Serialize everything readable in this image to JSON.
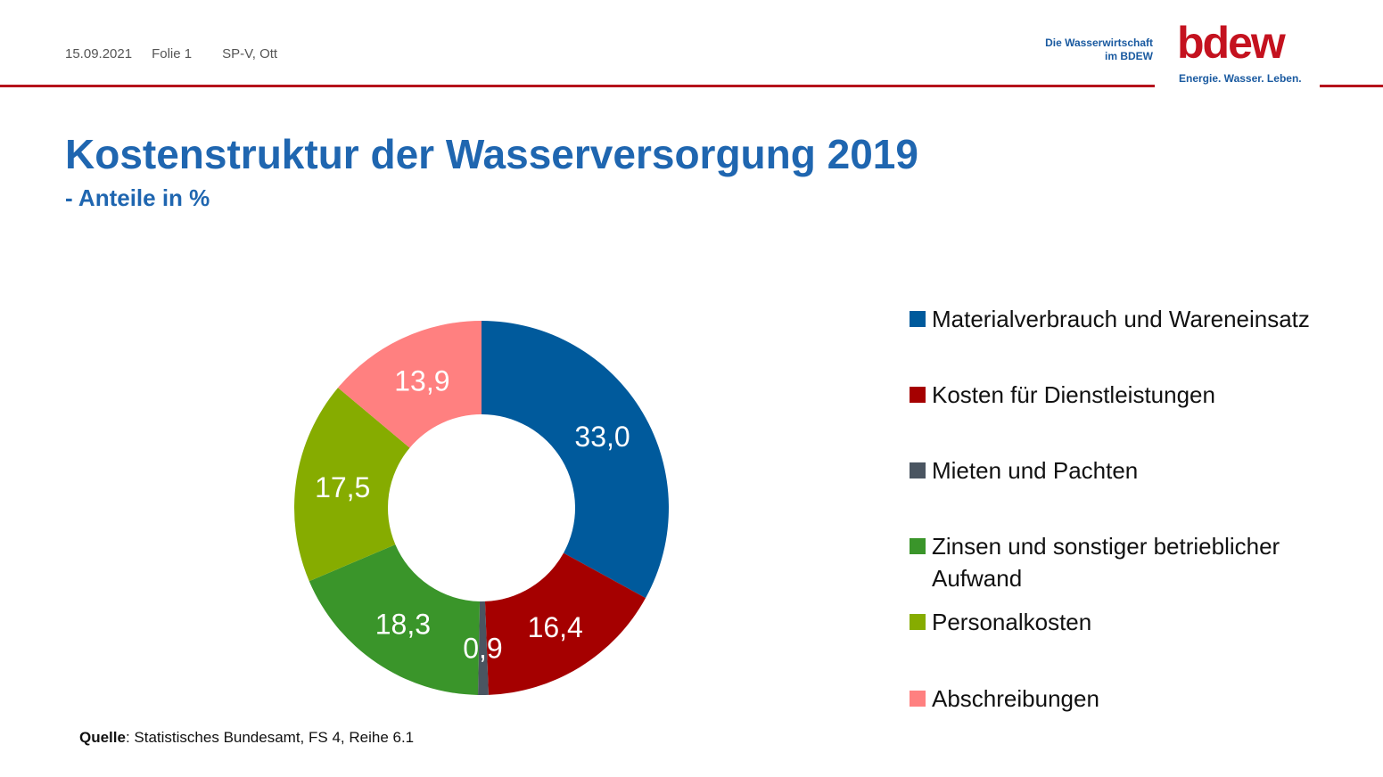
{
  "header": {
    "date": "15.09.2021",
    "slide": "Folie 1",
    "author": "SP-V, Ott",
    "logo_subtitle_line1": "Die Wasserwirtschaft",
    "logo_subtitle_line2": "im BDEW",
    "logo_word": "bdew",
    "logo_tagline": "Energie. Wasser. Leben."
  },
  "slide": {
    "title": "Kostenstruktur der Wasserversorgung 2019",
    "subtitle": "- Anteile in %"
  },
  "source": {
    "label": "Quelle",
    "text": ": Statistisches Bundesamt, FS 4, Reihe 6.1"
  },
  "colors": {
    "accent_red": "#b5121b",
    "title_blue": "#1f66b0"
  },
  "chart_data": {
    "type": "pie",
    "variant": "donut",
    "title": "",
    "legend_position": "right",
    "categories": [
      "Materialverbrauch und Wareneinsatz",
      "Kosten für Dienstleistungen",
      "Mieten und Pachten",
      "Zinsen und sonstiger betrieblicher Aufwand",
      "Personalkosten",
      "Abschreibungen"
    ],
    "values": [
      33.0,
      16.4,
      0.9,
      18.3,
      17.5,
      13.9
    ],
    "labels": [
      "33,0",
      "16,4",
      "0,9",
      "18,3",
      "17,5",
      "13,9"
    ],
    "colors": [
      "#005a9c",
      "#a50000",
      "#4a5561",
      "#3a952a",
      "#86ac00",
      "#ff8080"
    ]
  }
}
